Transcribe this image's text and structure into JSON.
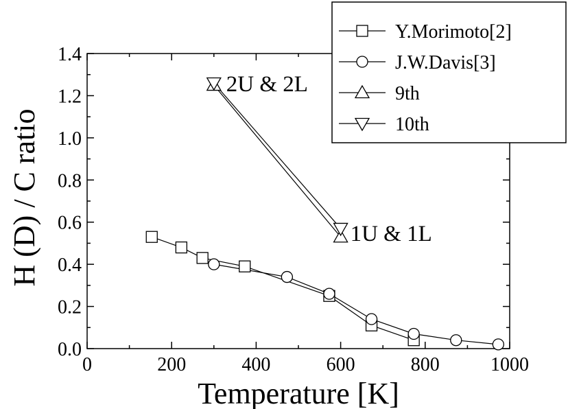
{
  "chart_data": {
    "type": "scatter",
    "xlabel": "Temperature [K]",
    "ylabel": "H (D) / C ratio",
    "xlim": [
      0,
      1000
    ],
    "ylim": [
      0.0,
      1.4
    ],
    "x_ticks": [
      "0",
      "200",
      "400",
      "600",
      "800",
      "1000"
    ],
    "y_ticks": [
      "0.0",
      "0.2",
      "0.4",
      "0.6",
      "0.8",
      "1.0",
      "1.2",
      "1.4"
    ],
    "grid": false,
    "legend_position": "top-right",
    "series": [
      {
        "name": "Y.Morimoto[2]",
        "marker": "square",
        "points": [
          {
            "x": 153,
            "y": 0.53
          },
          {
            "x": 223,
            "y": 0.48
          },
          {
            "x": 273,
            "y": 0.43
          },
          {
            "x": 373,
            "y": 0.39
          },
          {
            "x": 573,
            "y": 0.25
          },
          {
            "x": 673,
            "y": 0.11
          },
          {
            "x": 773,
            "y": 0.04
          }
        ]
      },
      {
        "name": "J.W.Davis[3]",
        "marker": "circle",
        "points": [
          {
            "x": 300,
            "y": 0.4
          },
          {
            "x": 473,
            "y": 0.34
          },
          {
            "x": 573,
            "y": 0.26
          },
          {
            "x": 673,
            "y": 0.14
          },
          {
            "x": 773,
            "y": 0.07
          },
          {
            "x": 873,
            "y": 0.04
          },
          {
            "x": 973,
            "y": 0.02
          }
        ]
      },
      {
        "name": "9th",
        "marker": "triangle-up",
        "points": [
          {
            "x": 300,
            "y": 1.25
          },
          {
            "x": 600,
            "y": 0.53
          }
        ]
      },
      {
        "name": "10th",
        "marker": "triangle-down",
        "points": [
          {
            "x": 300,
            "y": 1.26
          },
          {
            "x": 600,
            "y": 0.57
          }
        ]
      }
    ],
    "annotations": [
      {
        "text": "2U & 2L",
        "x": 300,
        "y": 1.26
      },
      {
        "text": "1U & 1L",
        "x": 600,
        "y": 0.55
      }
    ]
  }
}
